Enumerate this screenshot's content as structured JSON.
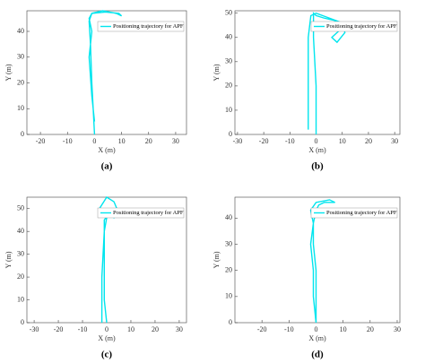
{
  "chart_data": [
    {
      "type": "line",
      "caption": "(a)",
      "xlabel": "X (m)",
      "ylabel": "Y (m)",
      "xlim": [
        -25,
        34
      ],
      "ylim": [
        0,
        48
      ],
      "xticks": [
        -20,
        -10,
        0,
        10,
        20,
        30
      ],
      "yticks": [
        0,
        10,
        20,
        30,
        40
      ],
      "legend": "upper right",
      "x": [
        0,
        -0.5,
        -1,
        -1.5,
        -2,
        -1,
        3,
        8,
        10,
        9,
        4,
        -1,
        -2,
        -1,
        -2,
        -1,
        0
      ],
      "series": [
        {
          "name": "Positioning trajectory for APF",
          "color": "#00e5ee",
          "values": [
            0,
            10,
            20,
            35,
            44,
            47,
            48,
            47,
            46,
            47,
            47.5,
            47,
            45,
            40,
            30,
            15,
            5
          ]
        }
      ]
    },
    {
      "type": "line",
      "caption": "(b)",
      "xlabel": "X (m)",
      "ylabel": "Y (m)",
      "xlim": [
        -31,
        32
      ],
      "ylim": [
        0,
        51
      ],
      "xticks": [
        -30,
        -20,
        -10,
        0,
        10,
        20,
        30
      ],
      "yticks": [
        0,
        10,
        20,
        30,
        40,
        50
      ],
      "legend": "upper right",
      "x": [
        0,
        0,
        -1,
        -1,
        0,
        3,
        7,
        10,
        8,
        6,
        8,
        11,
        10,
        5,
        0,
        -2,
        -3,
        -3,
        -3
      ],
      "series": [
        {
          "name": "Positioning trajectory for APF",
          "color": "#00e5ee",
          "values": [
            0,
            20,
            40,
            50,
            49,
            48,
            47,
            44,
            42,
            40,
            38,
            42,
            46,
            48,
            50,
            49,
            40,
            20,
            2
          ]
        }
      ]
    },
    {
      "type": "line",
      "caption": "(c)",
      "xlabel": "X (m)",
      "ylabel": "Y (m)",
      "xlim": [
        -33,
        33
      ],
      "ylim": [
        0,
        55
      ],
      "xticks": [
        -30,
        -20,
        -10,
        0,
        10,
        20,
        30
      ],
      "yticks": [
        0,
        10,
        20,
        30,
        40,
        50
      ],
      "legend": "upper right",
      "x": [
        -2,
        -2,
        -1,
        0,
        -3,
        0,
        3,
        5,
        3,
        1,
        -1,
        -1,
        -1,
        -1,
        0
      ],
      "series": [
        {
          "name": "Positioning trajectory for APF",
          "color": "#00e5ee",
          "values": [
            0,
            20,
            40,
            46,
            50,
            55,
            53,
            48,
            46,
            48,
            45,
            35,
            20,
            10,
            0
          ]
        }
      ]
    },
    {
      "type": "line",
      "caption": "(d)",
      "xlabel": "X (m)",
      "ylabel": "Y (m)",
      "xlim": [
        -30,
        31
      ],
      "ylim": [
        0,
        48
      ],
      "xticks": [
        -20,
        -10,
        0,
        10,
        20,
        30
      ],
      "yticks": [
        0,
        10,
        20,
        30,
        40
      ],
      "legend": "upper right",
      "x": [
        0,
        -1,
        -1,
        -2,
        -1,
        -2,
        0,
        5,
        7,
        3,
        1,
        0,
        -1,
        -1,
        0,
        0,
        0
      ],
      "series": [
        {
          "name": "Positioning trajectory for APF",
          "color": "#00e5ee",
          "values": [
            0,
            10,
            20,
            30,
            38,
            43,
            46,
            47,
            46,
            46,
            45,
            43,
            38,
            30,
            20,
            10,
            0
          ]
        }
      ]
    }
  ]
}
